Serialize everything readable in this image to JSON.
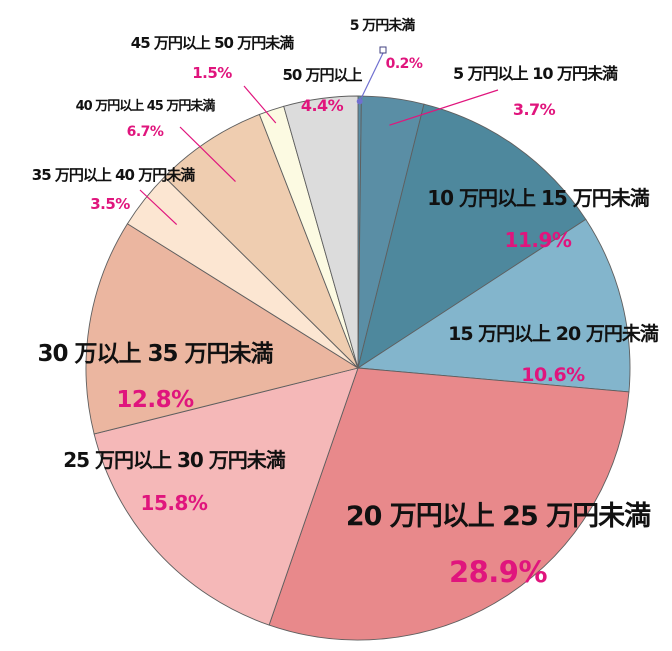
{
  "chart_data": {
    "type": "pie",
    "title": "",
    "start": "top, clockwise",
    "categories": [
      "5 万円未満",
      "5 万円以上 10 万円未満",
      "10 万円以上 15 万円未満",
      "15 万円以上 20 万円未満",
      "20 万円以上 25 万円未満",
      "25 万円以上 30 万円未満",
      "30 万以上 35 万円未満",
      "35 万円以上 40 万円未満",
      "40 万円以上 45 万円未満",
      "45 万円以上 50 万円未満",
      "50 万円以上"
    ],
    "values": [
      0.2,
      3.7,
      11.9,
      10.6,
      28.9,
      15.8,
      12.8,
      3.5,
      6.7,
      1.5,
      4.4
    ],
    "value_labels": [
      "0.2%",
      "3.7%",
      "11.9%",
      "10.6%",
      "28.9%",
      "15.8%",
      "12.8%",
      "3.5%",
      "6.7%",
      "1.5%",
      "4.4%"
    ],
    "colors": [
      "#5a8ea5",
      "#5a8ea5",
      "#4e889d",
      "#83b5cc",
      "#e8898b",
      "#f5b8b8",
      "#ebb6a0",
      "#fce6d2",
      "#efcdb0",
      "#fcfae2",
      "#dcdcdc"
    ],
    "leader_color": "#e0157d",
    "small_leader_color": "#7070d0"
  }
}
